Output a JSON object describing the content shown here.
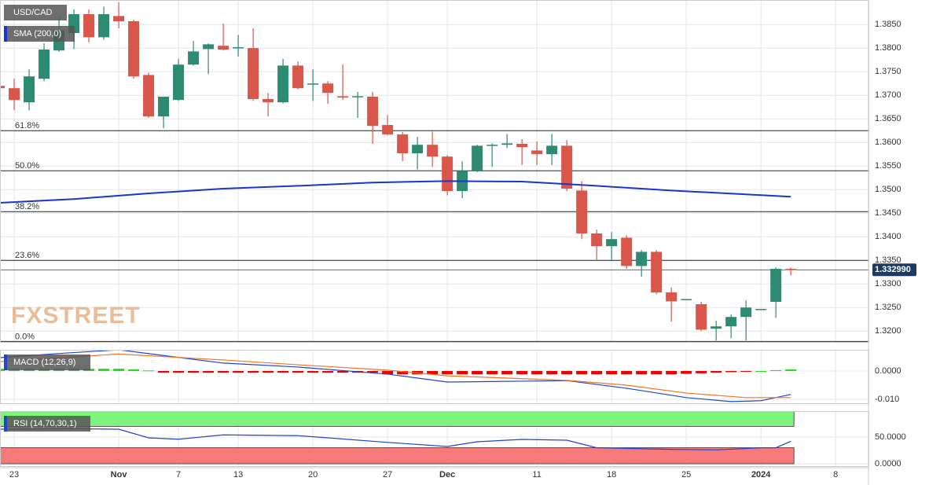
{
  "chart_data": [
    {
      "type": "candlestick",
      "title": "USD/CAD",
      "open": [
        1.372,
        1.3715,
        1.3685,
        1.3735,
        1.3795,
        1.3832,
        1.3872,
        1.3823,
        1.3868,
        1.3857,
        1.3743,
        1.3655,
        1.369,
        1.3765,
        1.3798,
        1.3805,
        1.38,
        1.38,
        1.3692,
        1.3685,
        1.3763,
        1.3723,
        1.3725,
        1.3698,
        1.3697,
        1.3697,
        1.3637,
        1.3617,
        1.3577,
        1.3595,
        1.357,
        1.3497,
        1.354,
        1.3593,
        1.3595,
        1.3597,
        1.3583,
        1.3575,
        1.3593,
        1.3498,
        1.3407,
        1.338,
        1.3398,
        1.3338,
        1.3368,
        1.3282,
        1.3268,
        1.3257,
        1.3205,
        1.321,
        1.323,
        1.3247,
        1.3262,
        1.3332
      ],
      "high": [
        1.3728,
        1.3735,
        1.3755,
        1.381,
        1.3865,
        1.3882,
        1.3882,
        1.3888,
        1.3897,
        1.386,
        1.3748,
        1.3697,
        1.3777,
        1.3815,
        1.381,
        1.3852,
        1.3828,
        1.3842,
        1.3705,
        1.3777,
        1.3772,
        1.3755,
        1.373,
        1.3765,
        1.3707,
        1.3707,
        1.3658,
        1.3622,
        1.3612,
        1.3623,
        1.3573,
        1.356,
        1.3595,
        1.3598,
        1.3618,
        1.3607,
        1.3602,
        1.3618,
        1.3605,
        1.3518,
        1.3415,
        1.341,
        1.3403,
        1.3372,
        1.3372,
        1.3293,
        1.3268,
        1.3262,
        1.3222,
        1.3235,
        1.3265,
        1.3247,
        1.3335,
        1.3335
      ],
      "low": [
        1.371,
        1.3668,
        1.3668,
        1.373,
        1.3792,
        1.3798,
        1.3812,
        1.3818,
        1.3842,
        1.3735,
        1.3652,
        1.363,
        1.3688,
        1.3763,
        1.3745,
        1.3795,
        1.3782,
        1.3688,
        1.3655,
        1.3683,
        1.3713,
        1.3688,
        1.3682,
        1.369,
        1.3652,
        1.3597,
        1.3615,
        1.356,
        1.3543,
        1.3548,
        1.3488,
        1.3482,
        1.3537,
        1.3548,
        1.3588,
        1.3552,
        1.3552,
        1.3552,
        1.3497,
        1.3395,
        1.335,
        1.335,
        1.3332,
        1.3315,
        1.3278,
        1.322,
        1.3267,
        1.32,
        1.318,
        1.3185,
        1.318,
        1.3247,
        1.3228,
        1.3318
      ],
      "close": [
        1.3715,
        1.369,
        1.374,
        1.3797,
        1.3838,
        1.3872,
        1.3823,
        1.3872,
        1.3857,
        1.374,
        1.3655,
        1.3697,
        1.3765,
        1.3793,
        1.3808,
        1.3797,
        1.3802,
        1.3692,
        1.3685,
        1.3763,
        1.3715,
        1.3725,
        1.3705,
        1.3695,
        1.3698,
        1.3635,
        1.3617,
        1.3577,
        1.3595,
        1.357,
        1.3497,
        1.354,
        1.3593,
        1.3595,
        1.3598,
        1.359,
        1.3575,
        1.3593,
        1.3502,
        1.3407,
        1.338,
        1.3395,
        1.3338,
        1.3368,
        1.3282,
        1.3263,
        1.3268,
        1.3203,
        1.321,
        1.323,
        1.325,
        1.3247,
        1.3332,
        1.333
      ],
      "up_color": "#2e8a72",
      "down_color": "#d9574a",
      "overlays": [
        {
          "name": "SMA (200,0)",
          "color": "#1a35d0",
          "x": [
            0,
            5,
            10,
            15,
            20,
            25,
            30,
            35,
            40,
            45,
            50,
            53
          ],
          "values": [
            1.3472,
            1.348,
            1.3492,
            1.3502,
            1.3508,
            1.3515,
            1.3518,
            1.3517,
            1.3508,
            1.3498,
            1.349,
            1.3485
          ]
        }
      ],
      "levels": [
        {
          "label": "61.8%",
          "value": 1.3625
        },
        {
          "label": "50.0%",
          "value": 1.354
        },
        {
          "label": "38.2%",
          "value": 1.34533
        },
        {
          "label": "23.6%",
          "value": 1.335
        },
        {
          "label": "0.0%",
          "value": 1.3178
        }
      ],
      "last_price": {
        "value": 1.33299,
        "label": "1.332990"
      },
      "watermark": "FXSTREET",
      "xlim": [
        0.05,
        58.2
      ],
      "xticks": [
        {
          "value": 1,
          "label": "23"
        },
        {
          "value": 8,
          "label": "Nov"
        },
        {
          "value": 12,
          "label": "7"
        },
        {
          "value": 16,
          "label": "13"
        },
        {
          "value": 21,
          "label": "20"
        },
        {
          "value": 26,
          "label": "27"
        },
        {
          "value": 30,
          "label": "Dec"
        },
        {
          "value": 36,
          "label": "11"
        },
        {
          "value": 41,
          "label": "18"
        },
        {
          "value": 46,
          "label": "25"
        },
        {
          "value": 51,
          "label": "2024"
        },
        {
          "value": 56,
          "label": "8"
        }
      ],
      "ylim": [
        1.3177,
        1.3902
      ],
      "yticks": [
        {
          "value": 1.32,
          "label": "1.3200"
        },
        {
          "value": 1.325,
          "label": "1.3250"
        },
        {
          "value": 1.33,
          "label": "1.3300"
        },
        {
          "value": 1.335,
          "label": "1.3350"
        },
        {
          "value": 1.34,
          "label": "1.3400"
        },
        {
          "value": 1.345,
          "label": "1.3450"
        },
        {
          "value": 1.35,
          "label": "1.3500"
        },
        {
          "value": 1.355,
          "label": "1.3550"
        },
        {
          "value": 1.36,
          "label": "1.3600"
        },
        {
          "value": 1.365,
          "label": "1.3650"
        },
        {
          "value": 1.37,
          "label": "1.3700"
        },
        {
          "value": 1.375,
          "label": "1.3750"
        },
        {
          "value": 1.38,
          "label": "1.3800"
        },
        {
          "value": 1.385,
          "label": "1.3850"
        }
      ]
    },
    {
      "type": "macd",
      "title": "MACD (12,26,9)",
      "histogram": [
        0.0008,
        0.0008,
        0.0008,
        0.0008,
        0.0008,
        0.0008,
        0.0008,
        0.0008,
        0.0008,
        0.0006,
        0.0002,
        -0.0006,
        -0.0006,
        -0.0006,
        -0.0006,
        -0.0006,
        -0.0006,
        -0.0006,
        -0.0006,
        -0.0006,
        -0.0006,
        -0.0006,
        -0.0006,
        -0.0006,
        -0.0006,
        -0.0006,
        -0.0012,
        -0.0012,
        -0.0012,
        -0.0012,
        -0.0012,
        -0.0012,
        -0.0012,
        -0.0012,
        -0.0012,
        -0.0012,
        -0.0012,
        -0.0012,
        -0.0012,
        -0.0012,
        -0.0012,
        -0.0012,
        -0.0012,
        -0.0012,
        -0.0012,
        -0.0012,
        -0.001,
        -0.0008,
        -0.0006,
        -0.0004,
        -0.0002,
        0.0,
        0.0003,
        0.0006
      ],
      "up_color": "#22dd22",
      "down_color": "#ee0000",
      "lines": [
        {
          "color": "#2244cc",
          "x": [
            0,
            4,
            8,
            15,
            20,
            26,
            30,
            35,
            38,
            42,
            46,
            49,
            51,
            53
          ],
          "values": [
            0.0047,
            0.0062,
            0.0075,
            0.0028,
            0.0014,
            -0.0011,
            -0.0039,
            -0.0036,
            -0.0034,
            -0.0061,
            -0.0094,
            -0.0108,
            -0.0105,
            -0.0083
          ]
        },
        {
          "color": "#ee7722",
          "x": [
            0,
            8,
            15,
            20,
            26,
            30,
            38,
            42,
            46,
            50,
            53
          ],
          "values": [
            0.0033,
            0.006,
            0.0039,
            0.0022,
            0.0003,
            -0.0017,
            -0.0033,
            -0.005,
            -0.0078,
            -0.0094,
            -0.0094
          ]
        }
      ],
      "xlim": [
        0.05,
        58.2
      ],
      "ylim": [
        -0.0114,
        0.0075
      ],
      "yticks": [
        {
          "value": 0,
          "label": "0.0000"
        },
        {
          "value": -0.01,
          "label": "-0.010"
        }
      ]
    },
    {
      "type": "rsi",
      "title": "RSI (14,70,30,1)",
      "x": [
        0,
        5,
        8,
        10,
        12,
        15,
        20,
        22,
        26,
        30,
        32,
        35,
        38,
        40,
        45,
        48,
        51,
        52,
        53
      ],
      "values": [
        64.7,
        65.5,
        64.7,
        48.5,
        46,
        54,
        52.6,
        48.5,
        40,
        32.4,
        41.2,
        45.6,
        44.1,
        30,
        27,
        26,
        30,
        30,
        42
      ],
      "color": "#2244cc",
      "bands": [
        {
          "from": 70,
          "to": 100,
          "color": "#7df57d"
        },
        {
          "from": 0,
          "to": 30,
          "color": "#f77a7a"
        }
      ],
      "xlim": [
        0.05,
        58.2
      ],
      "ylim": [
        -4.4,
        98.5
      ],
      "yticks": [
        {
          "value": 50,
          "label": "50.0000"
        },
        {
          "value": 0,
          "label": "0.0000"
        }
      ]
    }
  ]
}
